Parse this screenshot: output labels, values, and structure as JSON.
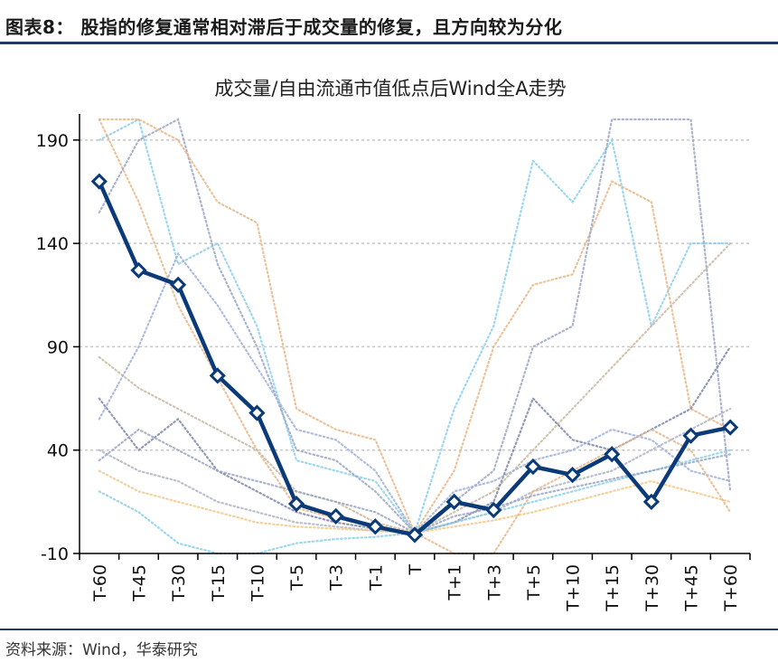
{
  "figure_title": "图表8： 股指的修复通常相对滞后于成交量的修复，且方向较为分化",
  "source": "资料来源：Wind，华泰研究",
  "colors": {
    "main_line": "#0b3a78",
    "rule": "#1f3864",
    "grid": "#c8c8c8",
    "bg_series": [
      "#e8b88a",
      "#8ad0ec",
      "#9aa6c4",
      "#c9b8a0",
      "#7d86a8",
      "#b0b4c4",
      "#f2c98a",
      "#a0b0d8"
    ]
  },
  "chart_data": {
    "type": "line",
    "title": "成交量/自由流通市值低点后Wind全A走势",
    "xlabel": "",
    "ylabel": "",
    "categories": [
      "T-60",
      "T-45",
      "T-30",
      "T-15",
      "T-10",
      "T-5",
      "T-3",
      "T-1",
      "T",
      "T+1",
      "T+3",
      "T+5",
      "T+10",
      "T+15",
      "T+30",
      "T+45",
      "T+60"
    ],
    "ylim": [
      -10,
      200
    ],
    "yticks": [
      -10,
      40,
      90,
      140,
      190
    ],
    "grid": true,
    "legend": "none",
    "series": [
      {
        "role": "average",
        "style": "solid-diamond",
        "values": [
          170,
          127,
          120,
          76,
          58,
          14,
          8,
          3,
          -1,
          15,
          11,
          32,
          28,
          38,
          15,
          47,
          51
        ]
      },
      {
        "role": "sample",
        "values": [
          200,
          160,
          110,
          75,
          40,
          12,
          7,
          3,
          0,
          30,
          90,
          120,
          125,
          170,
          160,
          60,
          50
        ]
      },
      {
        "role": "sample",
        "values": [
          190,
          200,
          130,
          140,
          100,
          35,
          30,
          25,
          0,
          60,
          100,
          180,
          160,
          190,
          100,
          140,
          140
        ]
      },
      {
        "role": "sample",
        "values": [
          155,
          190,
          200,
          130,
          90,
          40,
          35,
          20,
          0,
          15,
          30,
          90,
          100,
          200,
          200,
          200,
          20
        ]
      },
      {
        "role": "sample",
        "values": [
          85,
          70,
          60,
          50,
          40,
          20,
          15,
          5,
          0,
          10,
          20,
          40,
          60,
          80,
          100,
          120,
          140
        ]
      },
      {
        "role": "sample",
        "values": [
          65,
          40,
          55,
          30,
          20,
          10,
          5,
          2,
          0,
          5,
          15,
          65,
          45,
          40,
          50,
          60,
          90
        ]
      },
      {
        "role": "sample",
        "values": [
          40,
          30,
          25,
          15,
          10,
          5,
          3,
          1,
          0,
          5,
          10,
          20,
          25,
          30,
          40,
          50,
          60
        ]
      },
      {
        "role": "sample",
        "values": [
          30,
          20,
          15,
          10,
          5,
          3,
          2,
          1,
          0,
          3,
          6,
          10,
          15,
          20,
          25,
          20,
          15
        ]
      },
      {
        "role": "sample",
        "values": [
          55,
          90,
          135,
          110,
          80,
          50,
          45,
          30,
          0,
          20,
          25,
          35,
          40,
          50,
          45,
          30,
          25
        ]
      },
      {
        "role": "sample",
        "values": [
          200,
          200,
          190,
          160,
          150,
          60,
          50,
          45,
          0,
          -10,
          -10,
          20,
          30,
          40,
          50,
          40,
          10
        ]
      },
      {
        "role": "sample",
        "values": [
          20,
          10,
          -5,
          -10,
          -10,
          -5,
          -3,
          -2,
          0,
          5,
          10,
          15,
          20,
          25,
          30,
          35,
          40
        ]
      },
      {
        "role": "sample",
        "values": [
          35,
          50,
          40,
          30,
          25,
          20,
          15,
          10,
          0,
          8,
          12,
          18,
          22,
          26,
          30,
          34,
          38
        ]
      }
    ]
  }
}
